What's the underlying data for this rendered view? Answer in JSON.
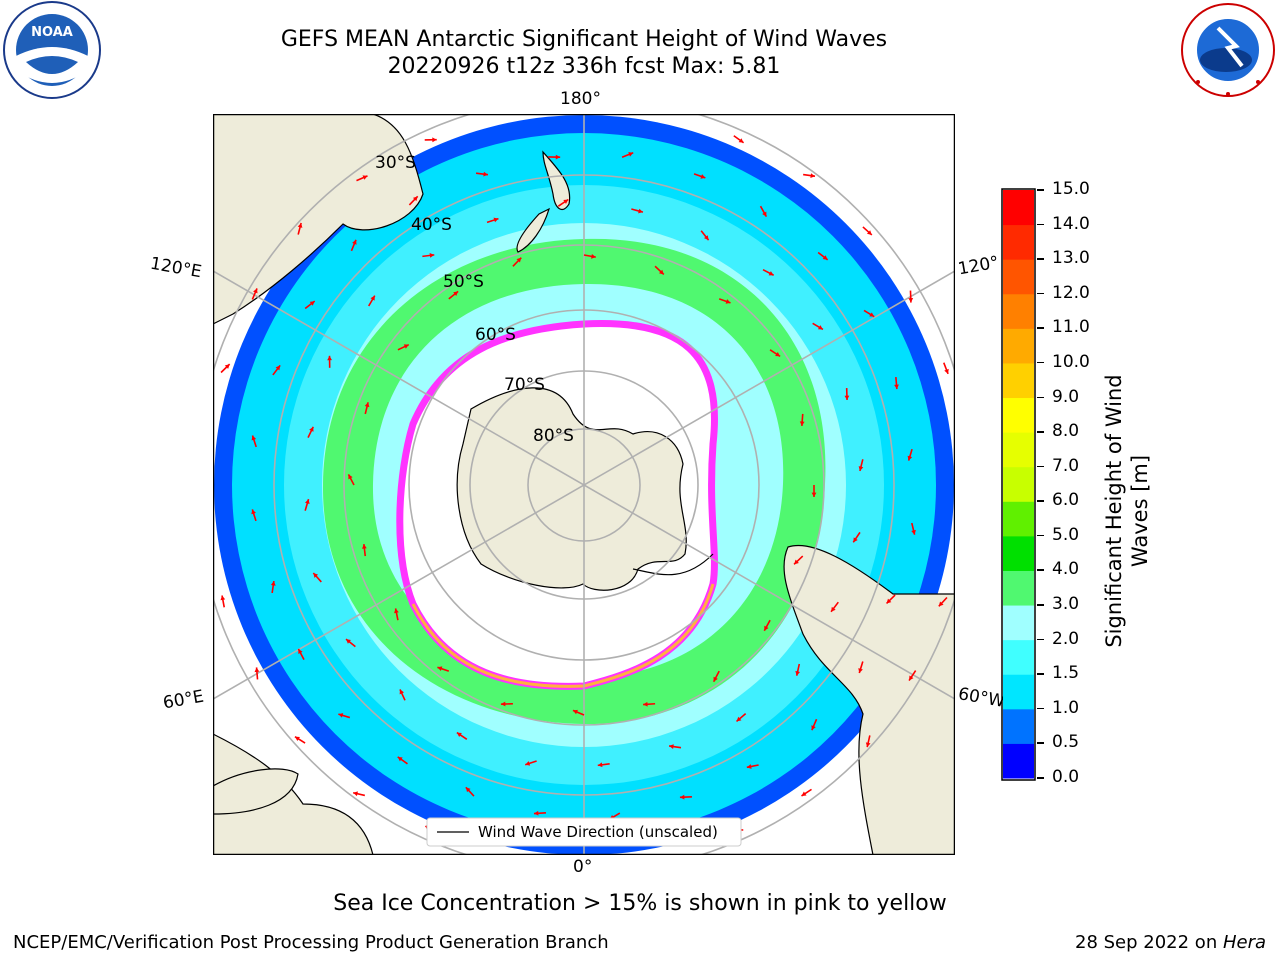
{
  "header": {
    "title_line1": "GEFS MEAN Antarctic Significant Height of Wind Waves",
    "title_line2": "20220926 t12z 336h fcst   Max: 5.81"
  },
  "logos": {
    "noaa_text": "NOAA",
    "noaa_ring_text": "NATIONAL OCEANIC AND ATMOSPHERIC ADMINISTRATION · U.S. DEPARTMENT OF COMMERCE",
    "nws_ring_text": "NATIONAL WEATHER SERVICE"
  },
  "map": {
    "projection": "south polar stereographic",
    "longitude_labels": {
      "top": "180°",
      "bottom": "0°",
      "upper_left": "120°E",
      "lower_left": "60°E",
      "upper_right": "120°",
      "lower_right": "60°W"
    },
    "latitude_labels": [
      "30°S",
      "40°S",
      "50°S",
      "60°S",
      "70°S",
      "80°S"
    ],
    "legend_label": "Wind Wave Direction (unscaled)",
    "arrow_color": "#ff0000",
    "land_color": "#eeecda",
    "ice_edge_colors": [
      "#ff33ff",
      "#ffb040"
    ]
  },
  "colorbar": {
    "label_line1": "Significant Height of Wind",
    "label_line2": "Waves [m]",
    "ticks": [
      "0.0",
      "0.5",
      "1.0",
      "1.5",
      "2.0",
      "3.0",
      "4.0",
      "5.0",
      "6.0",
      "7.0",
      "8.0",
      "9.0",
      "10.0",
      "11.0",
      "12.0",
      "13.0",
      "14.0",
      "15.0"
    ],
    "colors": [
      "#0000ff",
      "#0073ff",
      "#00e6ff",
      "#40ffff",
      "#a0ffff",
      "#50f870",
      "#00e000",
      "#60f000",
      "#c8ff00",
      "#e6ff00",
      "#ffff00",
      "#ffd000",
      "#ffaa00",
      "#ff8000",
      "#ff5500",
      "#ff2a00",
      "#ff0000"
    ]
  },
  "note": "Sea Ice Concentration > 15% is shown in pink to yellow",
  "footer": {
    "left": "NCEP/EMC/Verification Post Processing Product Generation Branch",
    "right_prefix": "28 Sep 2022 on ",
    "right_machine": "Hera"
  }
}
